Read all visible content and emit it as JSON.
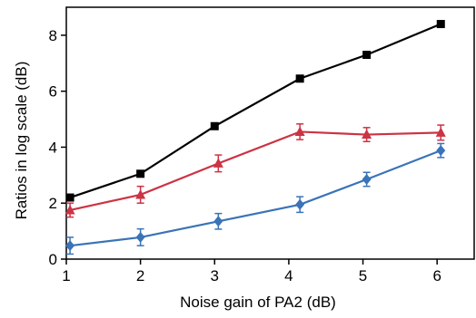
{
  "chart_data": {
    "type": "line",
    "title": "",
    "xlabel": "Noise gain of PA2 (dB)",
    "ylabel": "Ratios in log scale (dB)",
    "xlim": [
      1,
      6.5
    ],
    "ylim": [
      0,
      9
    ],
    "x_ticks": [
      1,
      2,
      3,
      4,
      5,
      6
    ],
    "y_ticks": [
      0,
      2,
      4,
      6,
      8
    ],
    "grid": false,
    "legend": "none",
    "series": [
      {
        "color": "#000000",
        "marker": "square",
        "x": [
          1.05,
          2.0,
          3.0,
          4.15,
          5.05,
          6.05
        ],
        "y": [
          2.2,
          3.05,
          4.75,
          6.45,
          7.3,
          8.4
        ],
        "err": [
          0,
          0,
          0,
          0,
          0,
          0
        ]
      },
      {
        "color": "#cc3344",
        "marker": "triangle",
        "x": [
          1.05,
          2.0,
          3.05,
          4.15,
          5.05,
          6.05
        ],
        "y": [
          1.75,
          2.3,
          3.42,
          4.55,
          4.45,
          4.52
        ],
        "err": [
          0.25,
          0.3,
          0.3,
          0.28,
          0.25,
          0.27
        ]
      },
      {
        "color": "#3a73b8",
        "marker": "diamond",
        "x": [
          1.05,
          2.0,
          3.05,
          4.15,
          5.05,
          6.05
        ],
        "y": [
          0.48,
          0.78,
          1.35,
          1.95,
          2.85,
          3.88
        ],
        "err": [
          0.3,
          0.3,
          0.28,
          0.28,
          0.25,
          0.25
        ]
      }
    ]
  }
}
